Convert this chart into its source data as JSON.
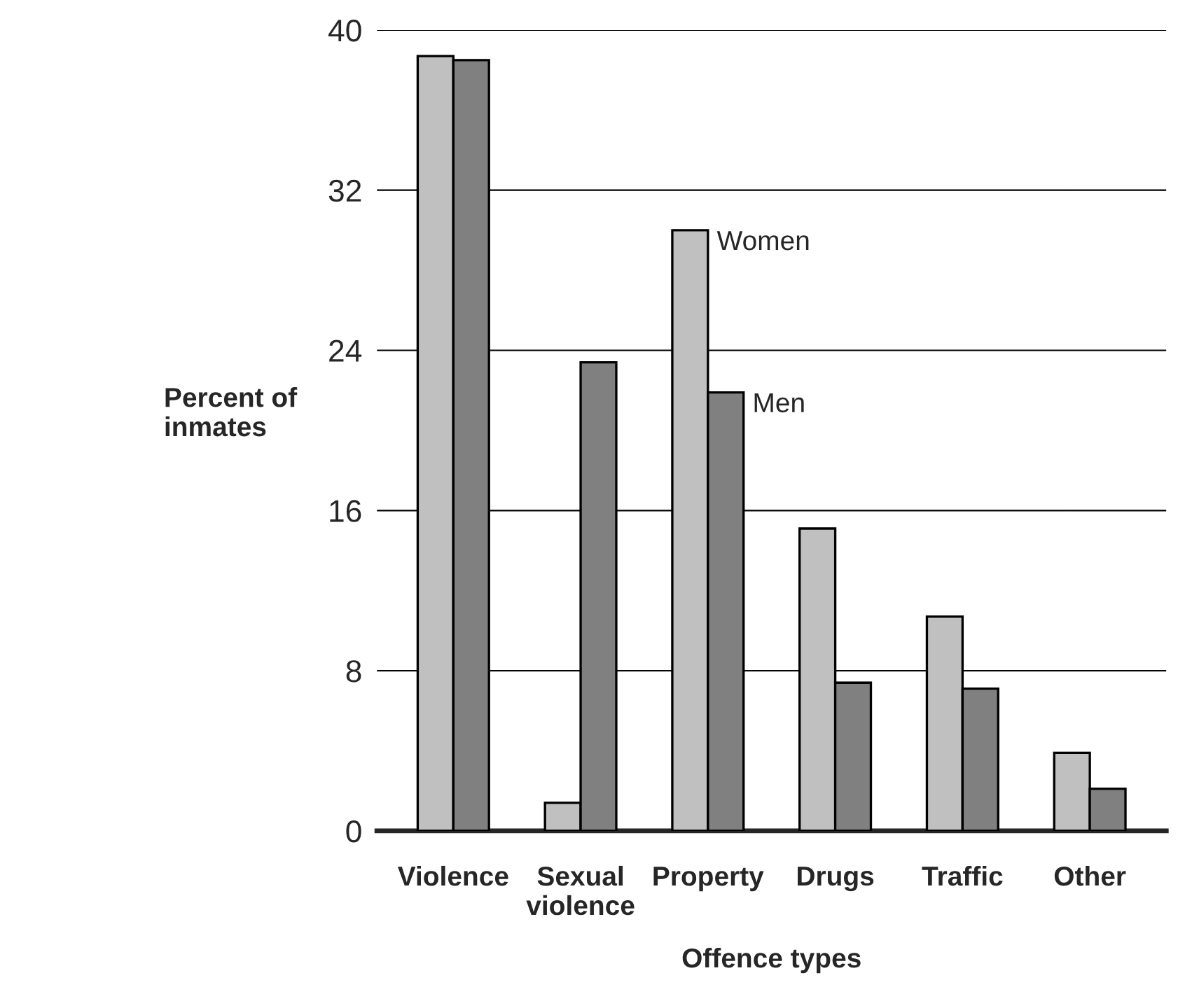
{
  "chart_data": {
    "type": "bar",
    "xlabel": "Offence types",
    "ylabel": "Percent of\ninmates",
    "categories": [
      "Violence",
      "Sexual\nviolence",
      "Property",
      "Drugs",
      "Traffic",
      "Other"
    ],
    "series": [
      {
        "name": "Women",
        "color": "#c0c0c0",
        "values": [
          38.7,
          1.4,
          30.0,
          15.1,
          10.7,
          3.9
        ]
      },
      {
        "name": "Men",
        "color": "#808080",
        "values": [
          38.5,
          23.4,
          21.9,
          7.4,
          7.1,
          2.1
        ]
      }
    ],
    "ylim": [
      0,
      40
    ],
    "yticks": [
      0,
      8,
      16,
      24,
      32,
      40
    ],
    "grid": "y",
    "legend": false
  }
}
